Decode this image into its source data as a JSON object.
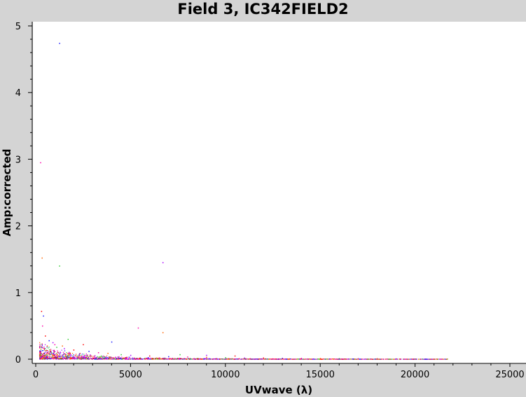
{
  "chart_data": {
    "type": "scatter",
    "title": "Field 3, IC342FIELD2",
    "xlabel": "UVwave (λ)",
    "ylabel": "Amp:corrected",
    "xlim": [
      0,
      26000
    ],
    "ylim": [
      0,
      5.2
    ],
    "xticks": [
      0,
      5000,
      10000,
      15000,
      20000,
      25000
    ],
    "xtick_labels": [
      "0",
      "5000",
      "10000",
      "15000",
      "20000",
      "25000"
    ],
    "yticks": [
      0,
      1,
      2,
      3,
      4,
      5
    ],
    "ytick_labels": [
      "0",
      "1",
      "2",
      "3",
      "4",
      "5"
    ],
    "grid": false,
    "legend": "none",
    "point_colors": [
      "#1a1aff",
      "#ff00aa",
      "#ff6600",
      "#33cc33",
      "#aa00ff",
      "#ff0000"
    ],
    "series": [
      {
        "values_xy": [
          [
            1250,
            4.74
          ],
          [
            250,
            2.95
          ],
          [
            330,
            1.52
          ],
          [
            1250,
            1.4
          ],
          [
            6700,
            1.45
          ],
          [
            300,
            0.72
          ],
          [
            400,
            0.65
          ],
          [
            5400,
            0.47
          ],
          [
            6700,
            0.4
          ],
          [
            1700,
            0.3
          ],
          [
            900,
            0.25
          ],
          [
            2500,
            0.22
          ],
          [
            4000,
            0.26
          ],
          [
            350,
            0.5
          ],
          [
            600,
            0.2
          ],
          [
            1100,
            0.18
          ],
          [
            1500,
            0.16
          ],
          [
            2000,
            0.14
          ],
          [
            2800,
            0.12
          ],
          [
            3300,
            0.1
          ],
          [
            3800,
            0.09
          ],
          [
            4500,
            0.07
          ],
          [
            5000,
            0.06
          ],
          [
            6000,
            0.05
          ],
          [
            7000,
            0.04
          ],
          [
            8000,
            0.035
          ],
          [
            9000,
            0.03
          ],
          [
            10000,
            0.025
          ],
          [
            11000,
            0.02
          ],
          [
            12000,
            0.02
          ],
          [
            13000,
            0.015
          ],
          [
            14000,
            0.015
          ],
          [
            15000,
            0.012
          ],
          [
            16000,
            0.01
          ],
          [
            17000,
            0.01
          ],
          [
            18000,
            0.008
          ],
          [
            19000,
            0.006
          ],
          [
            20000,
            0.005
          ],
          [
            21700,
            0.004
          ],
          [
            800,
            0.12
          ],
          [
            1300,
            0.1
          ],
          [
            1800,
            0.09
          ],
          [
            2300,
            0.08
          ],
          [
            2600,
            0.06
          ],
          [
            3100,
            0.05
          ],
          [
            3600,
            0.04
          ],
          [
            4200,
            0.03
          ],
          [
            4800,
            0.03
          ],
          [
            5500,
            0.02
          ],
          [
            6500,
            0.02
          ],
          [
            7500,
            0.015
          ],
          [
            8500,
            0.012
          ],
          [
            9500,
            0.01
          ],
          [
            500,
            0.35
          ],
          [
            700,
            0.28
          ],
          [
            1000,
            0.22
          ],
          [
            1400,
            0.2
          ],
          [
            7600,
            0.07
          ],
          [
            9000,
            0.06
          ],
          [
            10500,
            0.05
          ]
        ]
      }
    ]
  }
}
